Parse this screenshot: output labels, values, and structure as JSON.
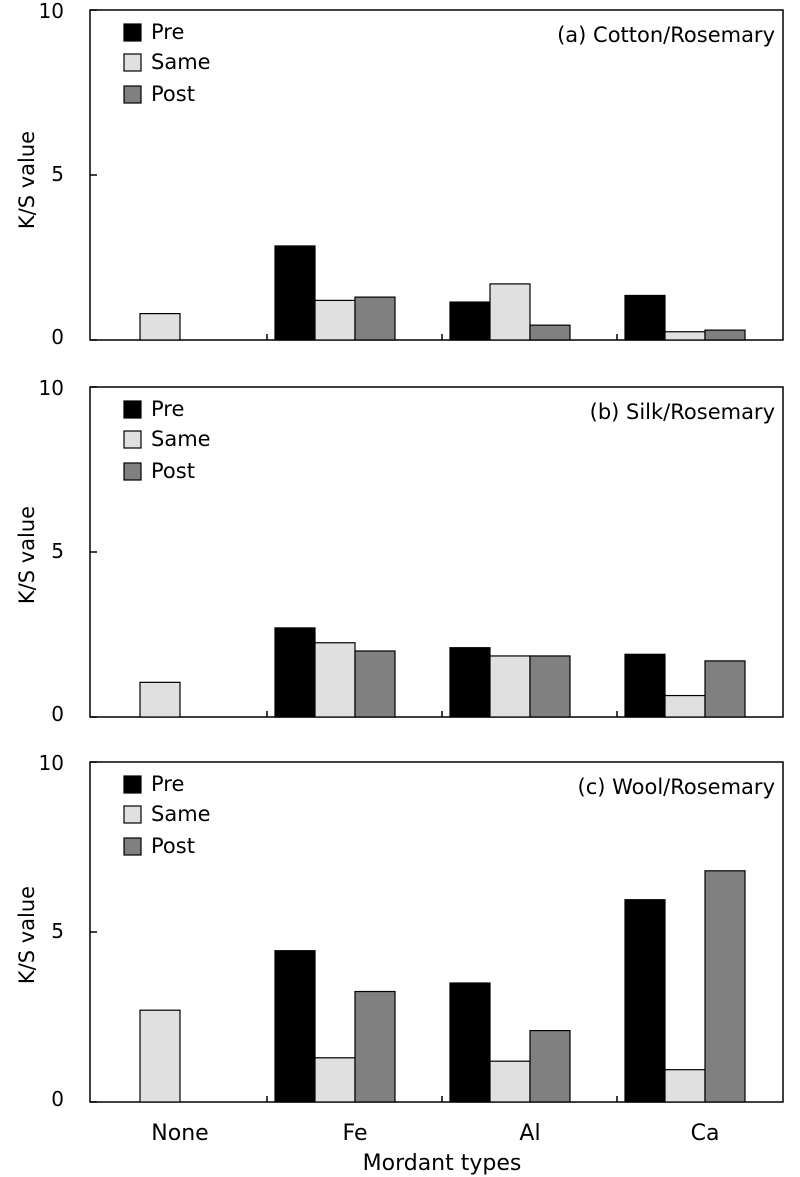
{
  "chart_data": {
    "type": "bar",
    "categories": [
      "None",
      "Fe",
      "Al",
      "Ca"
    ],
    "xlabel": "Mordant types",
    "ylabel": "K/S value",
    "ylim": [
      0,
      10
    ],
    "yticks": [
      0,
      5,
      10
    ],
    "legend": [
      "Pre",
      "Same",
      "Post"
    ],
    "colors": {
      "Pre": "#000000",
      "Same": "#e0e0e0",
      "Post": "#808080"
    },
    "panels": [
      {
        "title": "(a) Cotton/Rosemary",
        "series": [
          {
            "name": "Pre",
            "values": [
              null,
              2.85,
              1.15,
              1.35
            ]
          },
          {
            "name": "Same",
            "values": [
              0.8,
              1.2,
              1.7,
              0.25
            ]
          },
          {
            "name": "Post",
            "values": [
              null,
              1.3,
              0.45,
              0.3
            ]
          }
        ]
      },
      {
        "title": "(b) Silk/Rosemary",
        "series": [
          {
            "name": "Pre",
            "values": [
              null,
              2.7,
              2.1,
              1.9
            ]
          },
          {
            "name": "Same",
            "values": [
              1.05,
              2.25,
              1.85,
              0.65
            ]
          },
          {
            "name": "Post",
            "values": [
              null,
              2.0,
              1.85,
              1.7
            ]
          }
        ]
      },
      {
        "title": "(c) Wool/Rosemary",
        "series": [
          {
            "name": "Pre",
            "values": [
              null,
              4.45,
              3.5,
              5.95
            ]
          },
          {
            "name": "Same",
            "values": [
              2.7,
              1.3,
              1.2,
              0.95
            ]
          },
          {
            "name": "Post",
            "values": [
              null,
              3.25,
              2.1,
              6.8
            ]
          }
        ]
      }
    ]
  }
}
